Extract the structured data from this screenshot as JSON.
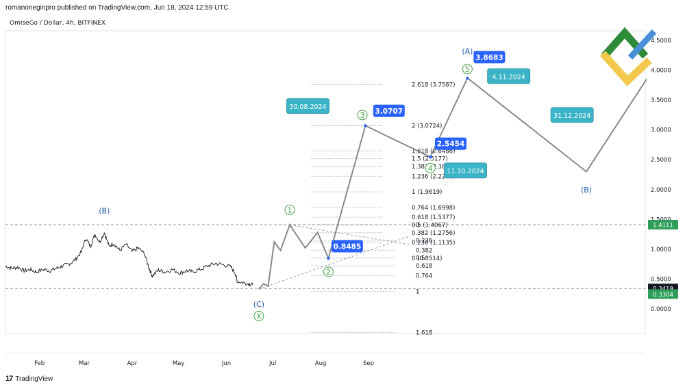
{
  "header": {
    "published": "romanoneginpro published on TradingView.com, Jun 18, 2024 12:59 UTC",
    "symbol": "OmiseGo / Dollar, 4h, BITFINEX"
  },
  "footer": {
    "brand": "TradingView"
  },
  "colors": {
    "callout_blue": "#2962ff",
    "callout_teal": "#3cb4c8",
    "wave_green": "#43a047",
    "wave_blue": "#1e5aa8",
    "price_line": "#131722",
    "wave_path": "#888888",
    "price_tag_green": "#2e9e5a",
    "price_tag_dark": "#131722",
    "logo_green": "#2e8b3a",
    "logo_yellow": "#f2c94c",
    "logo_blue": "#4a90d9"
  },
  "chart_data": {
    "type": "line",
    "y_axis": {
      "ticks": [
        0,
        0.5,
        1,
        1.5,
        2,
        2.5,
        3,
        3.5,
        4,
        4.5
      ],
      "tick_labels": [
        "0.0000",
        "0.5000",
        "1.0000",
        "1.5000",
        "2.0000",
        "2.5000",
        "3.0000",
        "3.5000",
        "4.0000",
        "4.5000"
      ],
      "range": [
        -0.4,
        5.0
      ],
      "position": "right"
    },
    "x_axis": {
      "tick_labels": [
        "Feb",
        "Mar",
        "Apr",
        "May",
        "Jun",
        "Jul",
        "Aug",
        "Sep"
      ],
      "tick_dates": [
        "2024-02-01",
        "2024-03-01",
        "2024-04-01",
        "2024-05-01",
        "2024-06-01",
        "2024-07-01",
        "2024-08-01",
        "2024-09-01"
      ],
      "range": [
        "2024-01-10",
        "2025-02-28"
      ]
    },
    "price_series": [
      {
        "x": "2024-01-10",
        "y": 0.72
      },
      {
        "x": "2024-01-14",
        "y": 0.68
      },
      {
        "x": "2024-01-18",
        "y": 0.7
      },
      {
        "x": "2024-01-22",
        "y": 0.64
      },
      {
        "x": "2024-01-26",
        "y": 0.66
      },
      {
        "x": "2024-01-30",
        "y": 0.62
      },
      {
        "x": "2024-02-04",
        "y": 0.66
      },
      {
        "x": "2024-02-08",
        "y": 0.64
      },
      {
        "x": "2024-02-12",
        "y": 0.68
      },
      {
        "x": "2024-02-16",
        "y": 0.72
      },
      {
        "x": "2024-02-20",
        "y": 0.75
      },
      {
        "x": "2024-02-24",
        "y": 0.82
      },
      {
        "x": "2024-02-28",
        "y": 0.95
      },
      {
        "x": "2024-03-02",
        "y": 1.18
      },
      {
        "x": "2024-03-05",
        "y": 1.05
      },
      {
        "x": "2024-03-08",
        "y": 1.25
      },
      {
        "x": "2024-03-11",
        "y": 1.12
      },
      {
        "x": "2024-03-14",
        "y": 1.28
      },
      {
        "x": "2024-03-17",
        "y": 1.05
      },
      {
        "x": "2024-03-20",
        "y": 1.1
      },
      {
        "x": "2024-03-24",
        "y": 0.98
      },
      {
        "x": "2024-03-28",
        "y": 1.08
      },
      {
        "x": "2024-04-01",
        "y": 0.96
      },
      {
        "x": "2024-04-05",
        "y": 1.02
      },
      {
        "x": "2024-04-09",
        "y": 0.92
      },
      {
        "x": "2024-04-12",
        "y": 0.68
      },
      {
        "x": "2024-04-14",
        "y": 0.55
      },
      {
        "x": "2024-04-18",
        "y": 0.65
      },
      {
        "x": "2024-04-22",
        "y": 0.62
      },
      {
        "x": "2024-04-27",
        "y": 0.66
      },
      {
        "x": "2024-05-02",
        "y": 0.6
      },
      {
        "x": "2024-05-06",
        "y": 0.64
      },
      {
        "x": "2024-05-10",
        "y": 0.62
      },
      {
        "x": "2024-05-15",
        "y": 0.66
      },
      {
        "x": "2024-05-20",
        "y": 0.72
      },
      {
        "x": "2024-05-25",
        "y": 0.76
      },
      {
        "x": "2024-05-30",
        "y": 0.74
      },
      {
        "x": "2024-06-04",
        "y": 0.7
      },
      {
        "x": "2024-06-07",
        "y": 0.58
      },
      {
        "x": "2024-06-08",
        "y": 0.46
      },
      {
        "x": "2024-06-12",
        "y": 0.44
      },
      {
        "x": "2024-06-16",
        "y": 0.42
      },
      {
        "x": "2024-06-18",
        "y": 0.4
      }
    ],
    "wave_path": [
      {
        "x": "2024-06-22",
        "y": 0.3304
      },
      {
        "x": "2024-06-25",
        "y": 0.42
      },
      {
        "x": "2024-06-28",
        "y": 0.38
      },
      {
        "x": "2024-07-02",
        "y": 1.12
      },
      {
        "x": "2024-07-06",
        "y": 0.98
      },
      {
        "x": "2024-07-12",
        "y": 1.41
      },
      {
        "x": "2024-07-22",
        "y": 1.02
      },
      {
        "x": "2024-07-30",
        "y": 1.28
      },
      {
        "x": "2024-08-06",
        "y": 0.8485
      },
      {
        "x": "2024-08-30",
        "y": 3.0707
      },
      {
        "x": "2024-10-11",
        "y": 2.5454
      },
      {
        "x": "2024-11-04",
        "y": 3.8683
      },
      {
        "x": "2025-01-20",
        "y": 2.3
      },
      {
        "x": "2025-02-28",
        "y": 3.85
      }
    ],
    "fib_extension": {
      "levels": [
        {
          "label": "2.618 (3.7587)",
          "y": 3.7587
        },
        {
          "label": "2 (3.0724)",
          "y": 3.0724
        },
        {
          "label": "1.618 (2.6486)",
          "y": 2.6486
        },
        {
          "label": "1.5 (2.5177)",
          "y": 2.5177
        },
        {
          "label": "1.382 (2.3867)",
          "y": 2.3867
        },
        {
          "label": "1.236 (2.2240)",
          "y": 2.224
        },
        {
          "label": "1 (1.9619)",
          "y": 1.9619
        },
        {
          "label": "0.764 (1.6998)",
          "y": 1.6998
        },
        {
          "label": "0.618 (1.5377)",
          "y": 1.5377
        },
        {
          "label": "0.5 (1.4067)",
          "y": 1.4067
        },
        {
          "label": "0.382 (1.2756)",
          "y": 1.2756
        },
        {
          "label": "0.236 (1.1135)",
          "y": 1.1135
        },
        {
          "label": "0 (0.8514)",
          "y": 0.8514
        }
      ],
      "x_start": "2024-07-26",
      "x_end": "2024-09-01"
    },
    "fib_retracement": {
      "levels": [
        {
          "label": "0",
          "y": 1.4111
        },
        {
          "label": "0.236",
          "y": 1.1473
        },
        {
          "label": "0.382",
          "y": 0.9842
        },
        {
          "label": "0.5",
          "y": 0.8524
        },
        {
          "label": "0.618",
          "y": 0.7205
        },
        {
          "label": "0.764",
          "y": 0.5574
        },
        {
          "label": "1",
          "y": 0.2937
        },
        {
          "label": "1.618",
          "y": -0.3969
        }
      ],
      "x_start": "2024-06-22",
      "x_end": "2024-09-01"
    },
    "triangle": [
      {
        "from": {
          "x": "2024-07-12",
          "y": 1.41
        },
        "to": {
          "x": "2024-09-01",
          "y": 0.94
        }
      },
      {
        "from": {
          "x": "2024-06-22",
          "y": 0.3304
        },
        "to": {
          "x": "2024-09-01",
          "y": 1.08
        }
      }
    ],
    "hlines": [
      {
        "y": 1.4111
      },
      {
        "y": 0.3419
      }
    ],
    "price_tags": [
      {
        "text": "1.4111",
        "y": 1.4111,
        "style": "green"
      },
      {
        "text": "0.3419",
        "y": 0.3419,
        "style": "dark"
      },
      {
        "text": "0.3304",
        "y": 0.248,
        "style": "green"
      }
    ],
    "wave_labels": [
      {
        "text": "(B)",
        "x": "2024-03-14",
        "y": 1.65,
        "style": "blue-text"
      },
      {
        "text": "1",
        "x": "2024-07-12",
        "y": 1.66,
        "style": "green-circle"
      },
      {
        "text": "2",
        "x": "2024-08-06",
        "y": 0.62,
        "style": "green-circle"
      },
      {
        "text": "(C)",
        "x": "2024-06-22",
        "y": 0.08,
        "style": "blue-text"
      },
      {
        "text": "X",
        "x": "2024-06-22",
        "y": -0.12,
        "style": "green-circle"
      },
      {
        "text": "3",
        "x": "2024-08-28",
        "y": 3.25,
        "style": "green-circle"
      },
      {
        "text": "4",
        "x": "2024-10-11",
        "y": 2.36,
        "style": "green-circle"
      },
      {
        "text": "5",
        "x": "2024-11-04",
        "y": 4.02,
        "style": "green-circle"
      },
      {
        "text": "(A)",
        "x": "2024-11-04",
        "y": 4.32,
        "style": "blue-text"
      },
      {
        "text": "(B)",
        "x": "2025-01-20",
        "y": 2.0,
        "style": "blue-text"
      }
    ],
    "callouts": [
      {
        "text": "0.8485",
        "style": "blue",
        "x": "2024-08-08",
        "y": 1.05
      },
      {
        "text": "3.0707",
        "style": "blue",
        "x": "2024-09-04",
        "y": 3.32
      },
      {
        "text": "2.5454",
        "style": "blue",
        "x": "2024-10-14",
        "y": 2.77
      },
      {
        "text": "3.8683",
        "style": "blue",
        "x": "2024-11-08",
        "y": 4.22
      },
      {
        "text": "30.08.2024",
        "style": "teal",
        "x": "2024-07-10",
        "y": 3.4
      },
      {
        "text": "11.10.2024",
        "style": "teal",
        "x": "2024-10-20",
        "y": 2.32
      },
      {
        "text": "4.11.2024",
        "style": "teal",
        "x": "2024-11-17",
        "y": 3.9
      },
      {
        "text": "31.12.2024",
        "style": "teal",
        "x": "2024-12-28",
        "y": 3.25
      }
    ]
  }
}
